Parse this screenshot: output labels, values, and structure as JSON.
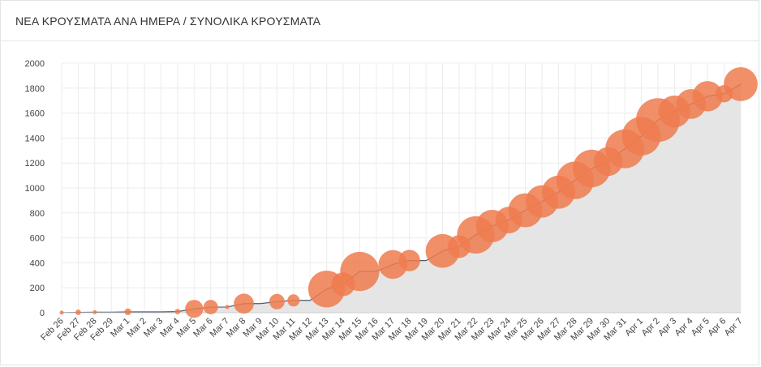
{
  "header": {
    "title": "ΝΕΑ ΚΡΟΥΣΜΑΤΑ ΑΝΑ ΗΜΕΡΑ / ΣΥΝΟΛΙΚΑ ΚΡΟΥΣΜΑΤΑ"
  },
  "colors": {
    "bubble": "#ee7b4f",
    "area": "#e5e5e5",
    "line": "#4a5a6e",
    "grid": "#ececec"
  },
  "chart_data": {
    "type": "area",
    "title": "ΝΕΑ ΚΡΟΥΣΜΑΤΑ ΑΝΑ ΗΜΕΡΑ / ΣΥΝΟΛΙΚΑ ΚΡΟΥΣΜΑΤΑ",
    "xlabel": "",
    "ylabel": "",
    "ylim": [
      0,
      2000
    ],
    "yticks": [
      0,
      200,
      400,
      600,
      800,
      1000,
      1200,
      1400,
      1600,
      1800,
      2000
    ],
    "grid": true,
    "categories": [
      "Feb 26",
      "Feb 27",
      "Feb 28",
      "Feb 29",
      "Mar 1",
      "Mar 2",
      "Mar 3",
      "Mar 4",
      "Mar 5",
      "Mar 6",
      "Mar 7",
      "Mar 8",
      "Mar 9",
      "Mar 10",
      "Mar 11",
      "Mar 12",
      "Mar 13",
      "Mar 14",
      "Mar 15",
      "Mar 16",
      "Mar 17",
      "Mar 18",
      "Mar 19",
      "Mar 20",
      "Mar 21",
      "Mar 22",
      "Mar 23",
      "Mar 24",
      "Mar 25",
      "Mar 26",
      "Mar 27",
      "Mar 28",
      "Mar 29",
      "Mar 30",
      "Mar 31",
      "Apr 1",
      "Apr 2",
      "Apr 3",
      "Apr 4",
      "Apr 5",
      "Apr 6",
      "Apr 7"
    ],
    "series": [
      {
        "values": [
          1,
          3,
          4,
          4,
          7,
          7,
          7,
          9,
          31,
          45,
          46,
          73,
          73,
          89,
          99,
          99,
          190,
          228,
          331,
          331,
          387,
          418,
          418,
          495,
          530,
          624,
          695,
          743,
          821,
          892,
          966,
          1061,
          1156,
          1212,
          1314,
          1415,
          1544,
          1613,
          1673,
          1735,
          1755,
          1832
        ]
      },
      {
        "values": [
          1,
          2,
          1,
          0,
          3,
          0,
          0,
          2,
          22,
          14,
          1,
          27,
          0,
          16,
          10,
          0,
          91,
          38,
          103,
          0,
          56,
          31,
          0,
          77,
          35,
          94,
          71,
          48,
          78,
          71,
          74,
          95,
          95,
          56,
          102,
          101,
          129,
          69,
          60,
          62,
          20,
          77
        ]
      }
    ]
  }
}
